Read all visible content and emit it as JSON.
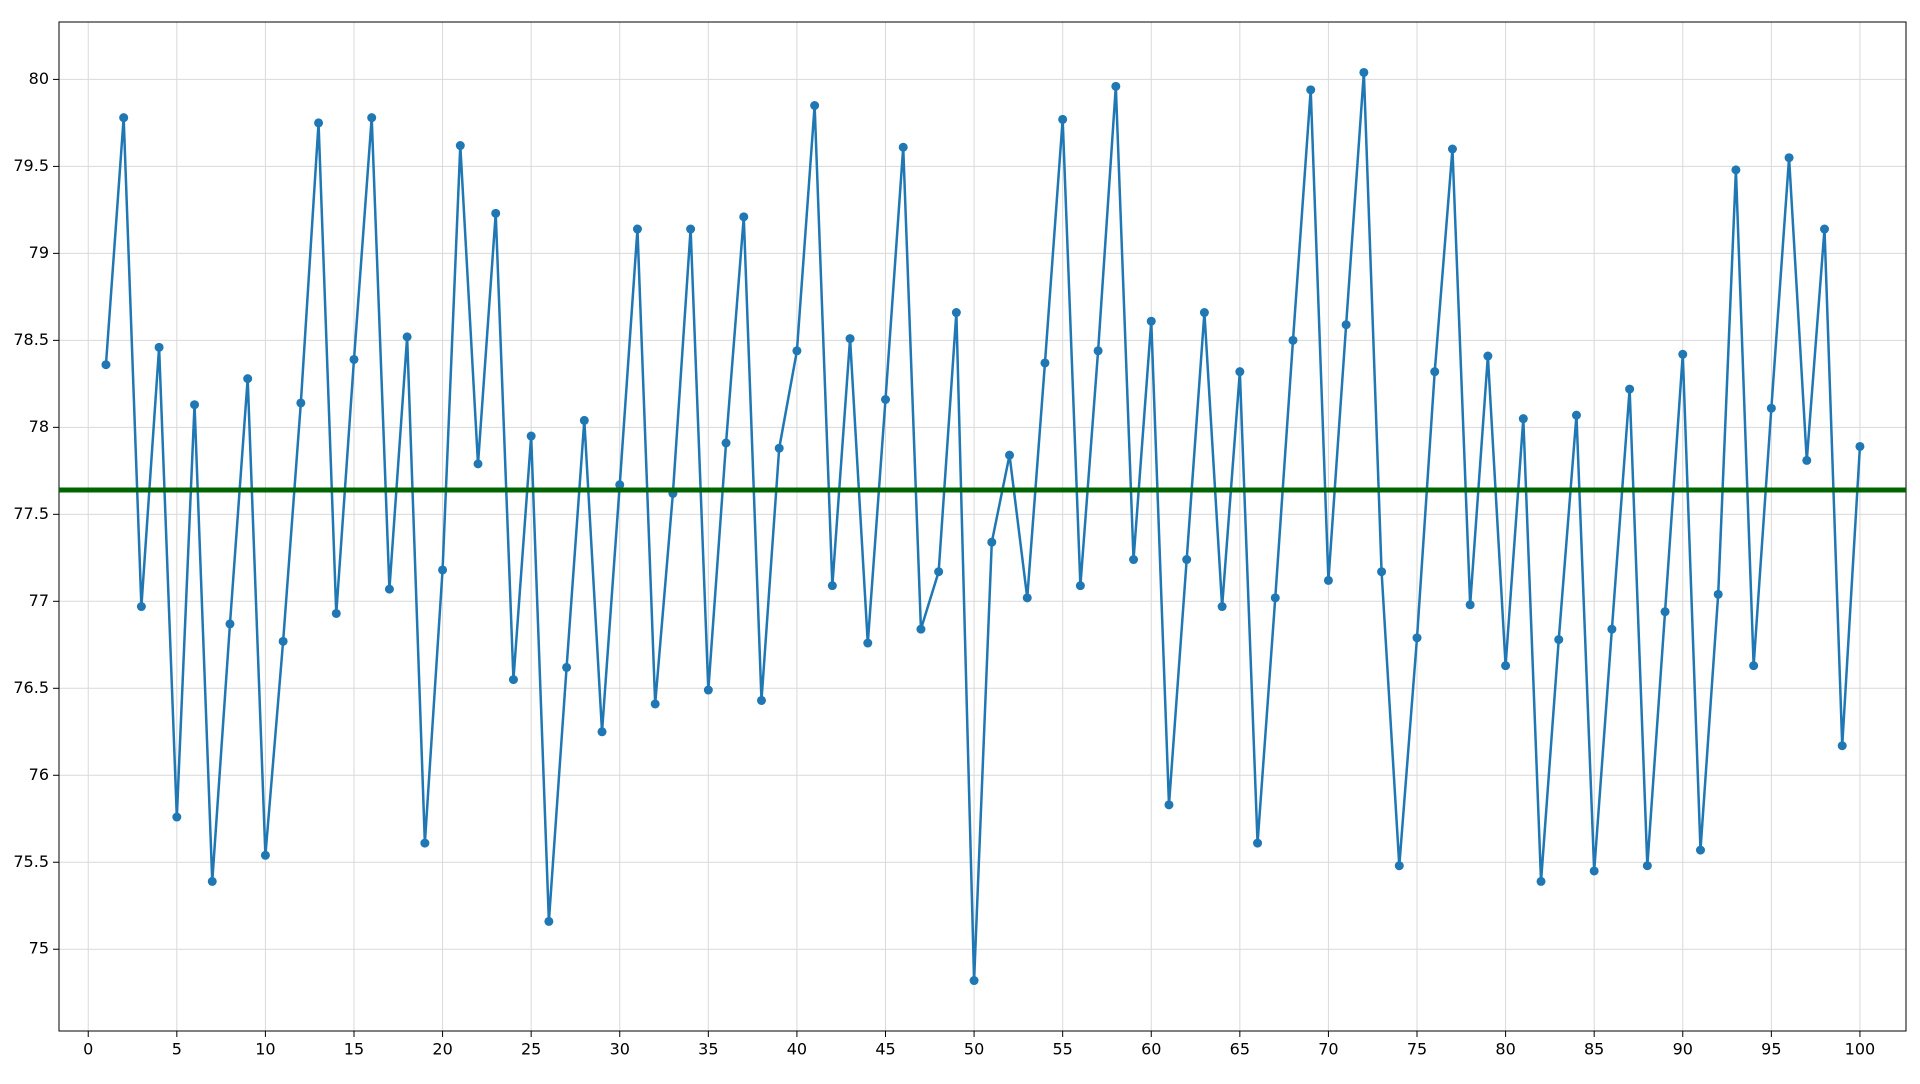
{
  "chart_data": {
    "type": "line",
    "x": [
      1,
      2,
      3,
      4,
      5,
      6,
      7,
      8,
      9,
      10,
      11,
      12,
      13,
      14,
      15,
      16,
      17,
      18,
      19,
      20,
      21,
      22,
      23,
      24,
      25,
      26,
      27,
      28,
      29,
      30,
      31,
      32,
      33,
      34,
      35,
      36,
      37,
      38,
      39,
      40,
      41,
      42,
      43,
      44,
      45,
      46,
      47,
      48,
      49,
      50,
      51,
      52,
      53,
      54,
      55,
      56,
      57,
      58,
      59,
      60,
      61,
      62,
      63,
      64,
      65,
      66,
      67,
      68,
      69,
      70,
      71,
      72,
      73,
      74,
      75,
      76,
      77,
      78,
      79,
      80,
      81,
      82,
      83,
      84,
      85,
      86,
      87,
      88,
      89,
      90,
      91,
      92,
      93,
      94,
      95,
      96,
      97,
      98,
      99,
      100
    ],
    "series": [
      {
        "color": "#1f77b4",
        "values": [
          78.36,
          79.78,
          76.97,
          78.46,
          75.76,
          78.13,
          75.39,
          76.87,
          78.28,
          75.54,
          76.77,
          78.14,
          79.75,
          76.93,
          78.39,
          79.78,
          77.07,
          78.52,
          75.61,
          77.18,
          79.62,
          77.79,
          79.23,
          76.55,
          77.95,
          75.16,
          76.62,
          78.04,
          76.25,
          77.67,
          79.14,
          76.41,
          77.62,
          79.14,
          76.49,
          77.91,
          79.21,
          76.43,
          77.88,
          78.44,
          79.85,
          77.09,
          78.51,
          76.76,
          78.16,
          79.61,
          76.84,
          77.17,
          78.66,
          74.82,
          77.34,
          77.84,
          77.02,
          78.37,
          79.77,
          77.09,
          78.44,
          79.96,
          77.24,
          78.61,
          75.83,
          77.24,
          78.66,
          76.97,
          78.32,
          75.61,
          77.02,
          78.5,
          79.94,
          77.12,
          78.59,
          80.04,
          77.17,
          75.48,
          76.79,
          78.32,
          79.6,
          76.98,
          78.41,
          76.63,
          78.05,
          75.39,
          76.78,
          78.07,
          75.45,
          76.84,
          78.22,
          75.48,
          76.94,
          78.42,
          75.57,
          77.04,
          79.48,
          76.63,
          78.11,
          79.55,
          77.81,
          79.14,
          76.17,
          77.89
        ]
      }
    ],
    "hline": {
      "value": 77.64,
      "color": "#006400"
    },
    "xlim": [
      -1.65,
      102.6
    ],
    "ylim": [
      74.53,
      80.33
    ],
    "xticks": [
      0,
      5,
      10,
      15,
      20,
      25,
      30,
      35,
      40,
      45,
      50,
      55,
      60,
      65,
      70,
      75,
      80,
      85,
      90,
      95,
      100
    ],
    "yticks": [
      75,
      75.5,
      76,
      76.5,
      77,
      77.5,
      78,
      78.5,
      79,
      79.5,
      80
    ],
    "grid": true
  }
}
